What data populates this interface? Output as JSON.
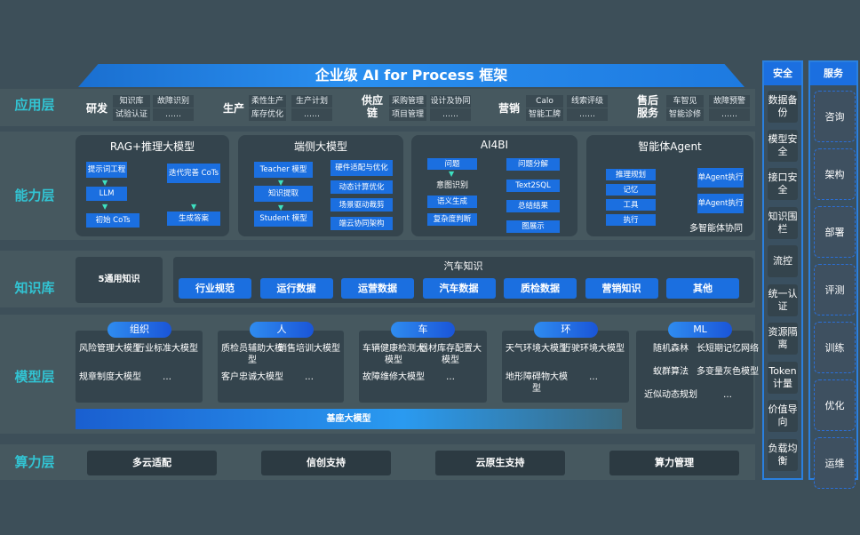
{
  "title": "企业级 AI for Process 框架",
  "layers": {
    "app": "应用层",
    "ability": "能力层",
    "knowledge": "知识库",
    "model": "模型层",
    "compute": "算力层"
  },
  "app": [
    {
      "name": "研发",
      "items": [
        "知识库",
        "试验认证",
        "故障识别",
        "……"
      ]
    },
    {
      "name": "生产",
      "items": [
        "柔性生产",
        "库存优化",
        "生产计划",
        "……"
      ]
    },
    {
      "name": "供应链",
      "items": [
        "采购管理",
        "项目管理",
        "设计及协同",
        "……"
      ]
    },
    {
      "name": "营销",
      "items": [
        "Calo",
        "智能工牌",
        "线索评级",
        "……"
      ]
    },
    {
      "name": "售后服务",
      "items": [
        "车智见",
        "智能诊修",
        "故障预警",
        "……"
      ]
    }
  ],
  "ability": {
    "rag": {
      "title": "RAG+推理大模型",
      "prompt": "提示词工程",
      "llm": "LLM",
      "cots": "初始 CoTs",
      "iter": "迭代完善 CoTs",
      "gen": "生成答案"
    },
    "edge": {
      "title": "端侧大模型",
      "teacher": "Teacher 模型",
      "distill": "知识提取",
      "student": "Student 模型",
      "side": [
        "硬件适配与优化",
        "动态计算优化",
        "场景驱动裁剪",
        "端云协同架构"
      ]
    },
    "ai4bi": {
      "title": "AI4BI",
      "q": "问题",
      "intent": "意图识别",
      "semantic": "语义生成",
      "complex": "复杂度判断",
      "decomp": "问题分解",
      "sql": "Text2SQL",
      "summary": "总结结果",
      "show": "图展示"
    },
    "agent": {
      "title": "智能体Agent",
      "items": [
        "推理规划",
        "记忆",
        "工具",
        "执行"
      ],
      "exec1": "单Agent执行",
      "exec2": "单Agent执行",
      "multi": "多智能体协同"
    }
  },
  "knowledge": {
    "general": "5通用知识",
    "auto_title": "汽车知识",
    "items": [
      "行业规范",
      "运行数据",
      "运营数据",
      "汽车数据",
      "质检数据",
      "营销知识",
      "其他"
    ]
  },
  "model": {
    "groups": [
      {
        "tag": "组织",
        "items": [
          "风险管理大模型",
          "行业标准大模型",
          "规章制度大模型",
          "…"
        ]
      },
      {
        "tag": "人",
        "items": [
          "质检员辅助大模型",
          "销售培训大模型",
          "客户忠诚大模型",
          "…"
        ]
      },
      {
        "tag": "车",
        "items": [
          "车辆健康检测大模型",
          "器材库存配置大模型",
          "故障维修大模型",
          "…"
        ]
      },
      {
        "tag": "环",
        "items": [
          "天气环境大模型",
          "行驶环境大模型",
          "地形障碍物大模型",
          "…"
        ]
      },
      {
        "tag": "ML",
        "items": [
          "随机森林",
          "长短期记忆网络",
          "蚁群算法",
          "多变量灰色模型",
          "近似动态规划",
          "…"
        ]
      }
    ],
    "base": "基座大模型"
  },
  "compute": [
    "多云适配",
    "信创支持",
    "云原生支持",
    "算力管理"
  ],
  "security": {
    "title": "安全",
    "items": [
      "数据备份",
      "模型安全",
      "接口安全",
      "知识围栏",
      "流控",
      "统一认证",
      "资源隔离",
      "Token计量",
      "价值导向",
      "负载均衡"
    ]
  },
  "service": {
    "title": "服务",
    "items": [
      "咨询",
      "架构",
      "部署",
      "评测",
      "训练",
      "优化",
      "运维"
    ]
  }
}
